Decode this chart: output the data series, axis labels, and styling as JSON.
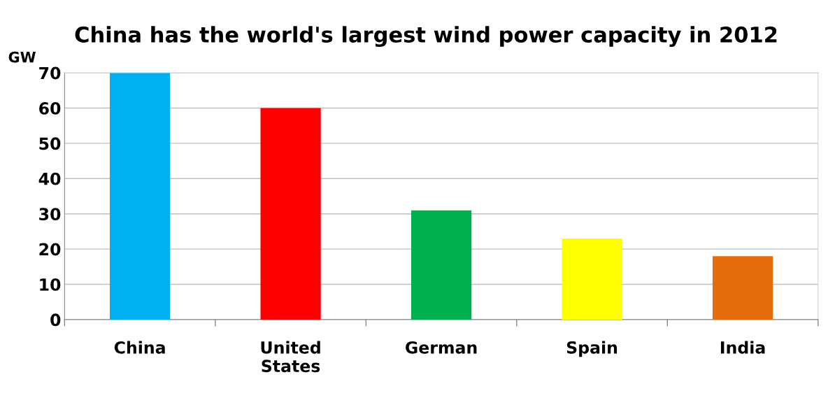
{
  "chart_data": {
    "type": "bar",
    "title": "China has the world's largest wind power capacity in 2012",
    "ylabel": "GW",
    "categories": [
      "China",
      "United\nStates",
      "German",
      "Spain",
      "India"
    ],
    "values": [
      70,
      60,
      31,
      23,
      18
    ],
    "colors": [
      "#00b0f0",
      "#ff0000",
      "#00b050",
      "#ffff00",
      "#e46c0a"
    ],
    "ylim": [
      0,
      70
    ],
    "yticks": [
      0,
      10,
      20,
      30,
      40,
      50,
      60,
      70
    ],
    "grid": "y",
    "legend": false
  }
}
